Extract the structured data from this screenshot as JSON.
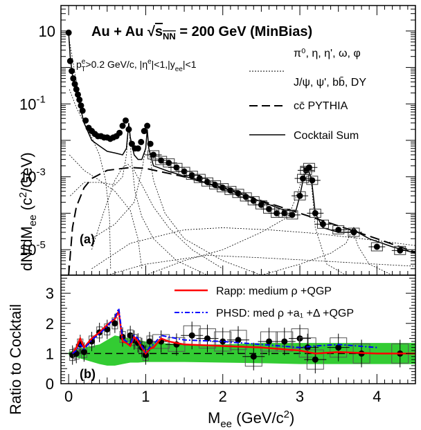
{
  "chart_data": [
    {
      "panel": "(a)",
      "type": "line",
      "title": "Au + Au √s_NN = 200 GeV (MinBias)",
      "title_parts": {
        "prefix": "Au + Au ",
        "sqrt": "√",
        "s": "s",
        "sub": "NN",
        "suffix": " = 200 GeV (MinBias)"
      },
      "cuts_label": {
        "p": "p",
        "sup1": "e",
        "sub1": "T",
        "a": ">0.2 GeV/c, |η",
        "sup2": "e",
        "b": "|<1,|y",
        "sub2": "ee",
        "c": "|<1"
      },
      "ylabel": {
        "main": "dN/dM",
        "sub": "ee",
        "unit": " (c",
        "sup": "2",
        "unit2": "/GeV)"
      },
      "yscale": "log",
      "ylim": [
        2e-06,
        50
      ],
      "xlim": [
        -0.1,
        4.5
      ],
      "y_ticks": [
        {
          "value": 10,
          "label": "10"
        },
        {
          "value": 0.1,
          "label": "10",
          "exp": "-1"
        },
        {
          "value": 0.001,
          "label": "10",
          "exp": "-3"
        },
        {
          "value": 1e-05,
          "label": "10",
          "exp": "-5"
        }
      ],
      "legend_position": "top-right",
      "legend": [
        {
          "label": "π⁰, η, η', ω, φ",
          "style": "dotted"
        },
        {
          "label": "J/ψ, ψ', bb̄, DY",
          "style": "none"
        },
        {
          "label": "cc̄ PYTHIA",
          "style": "dashed"
        },
        {
          "label": "Cocktail Sum",
          "style": "solid"
        }
      ],
      "data_points": {
        "x": [
          0.0,
          0.02,
          0.04,
          0.06,
          0.08,
          0.1,
          0.12,
          0.14,
          0.16,
          0.18,
          0.22,
          0.26,
          0.3,
          0.34,
          0.38,
          0.42,
          0.46,
          0.5,
          0.54,
          0.58,
          0.62,
          0.66,
          0.7,
          0.74,
          0.78,
          0.82,
          0.86,
          0.9,
          0.94,
          0.98,
          1.02,
          1.06,
          1.1,
          1.2,
          1.3,
          1.4,
          1.5,
          1.6,
          1.7,
          1.8,
          1.9,
          2.0,
          2.1,
          2.2,
          2.3,
          2.4,
          2.5,
          2.6,
          2.7,
          2.8,
          2.9,
          3.0,
          3.04,
          3.08,
          3.12,
          3.16,
          3.2,
          3.3,
          3.5,
          3.7,
          4.0,
          4.3
        ],
        "y": [
          9,
          1.5,
          0.8,
          0.5,
          0.35,
          0.25,
          0.18,
          0.13,
          0.09,
          0.065,
          0.035,
          0.022,
          0.018,
          0.015,
          0.013,
          0.013,
          0.012,
          0.012,
          0.011,
          0.012,
          0.013,
          0.016,
          0.025,
          0.035,
          0.02,
          0.008,
          0.006,
          0.006,
          0.009,
          0.018,
          0.025,
          0.008,
          0.004,
          0.0028,
          0.0024,
          0.0018,
          0.0014,
          0.0011,
          0.0009,
          0.00072,
          0.0006,
          0.0005,
          0.00042,
          0.00035,
          0.00028,
          0.00022,
          0.00017,
          0.00013,
          0.0001,
          0.0001,
          9e-05,
          0.0003,
          0.0009,
          0.0015,
          0.0018,
          0.0008,
          0.0001,
          5e-05,
          3.5e-05,
          3e-05,
          1.2e-05,
          9.5e-06
        ]
      },
      "cocktail_sum": {
        "x": [
          0.0,
          0.02,
          0.05,
          0.1,
          0.14,
          0.2,
          0.3,
          0.4,
          0.5,
          0.6,
          0.7,
          0.75,
          0.78,
          0.8,
          0.85,
          0.9,
          0.95,
          1.0,
          1.02,
          1.04,
          1.1,
          1.3,
          1.6,
          2.0,
          2.4,
          2.8,
          2.95,
          3.0,
          3.05,
          3.1,
          3.15,
          3.2,
          3.3,
          3.5,
          3.65,
          3.7,
          3.75,
          3.9,
          4.2,
          4.5
        ],
        "y": [
          9,
          2,
          0.6,
          0.2,
          0.1,
          0.03,
          0.01,
          0.007,
          0.005,
          0.0045,
          0.004,
          0.006,
          0.03,
          0.012,
          0.004,
          0.003,
          0.003,
          0.006,
          0.02,
          0.006,
          0.002,
          0.0014,
          0.0009,
          0.0005,
          0.00025,
          0.00012,
          0.00012,
          0.0003,
          0.001,
          0.0017,
          0.0009,
          0.0001,
          4e-05,
          3e-05,
          3e-05,
          4e-05,
          3e-05,
          2e-05,
          1.2e-05,
          8e-06
        ]
      },
      "charm_pythia": {
        "x": [
          0.0,
          0.05,
          0.1,
          0.2,
          0.3,
          0.5,
          0.8,
          1.0,
          1.5,
          2.0,
          2.5,
          3.0,
          3.5,
          4.0,
          4.5
        ],
        "y": [
          2e-06,
          4e-05,
          0.00015,
          0.0005,
          0.0009,
          0.0015,
          0.0018,
          0.0017,
          0.001,
          0.0005,
          0.00022,
          0.0001,
          4.5e-05,
          2e-05,
          8.5e-06
        ]
      }
    },
    {
      "panel": "(b)",
      "type": "line",
      "xlabel": {
        "main": "M",
        "sub": "ee",
        "unit": " (GeV/c",
        "sup": "2",
        "close": ")"
      },
      "ylabel": "Ratio to Cocktail",
      "ylim": [
        0,
        3.6
      ],
      "xlim": [
        -0.1,
        4.5
      ],
      "y_ticks": [
        0,
        1,
        2,
        3
      ],
      "x_ticks": [
        0,
        1,
        2,
        3,
        4
      ],
      "legend_position": "top-right",
      "series": [
        {
          "name": "Rapp: medium ρ +QGP",
          "color": "#ff0000",
          "style": "solid",
          "x": [
            0.05,
            0.1,
            0.15,
            0.2,
            0.25,
            0.3,
            0.4,
            0.5,
            0.6,
            0.65,
            0.7,
            0.75,
            0.8,
            0.85,
            0.9,
            0.95,
            1.0,
            1.05,
            1.1,
            1.2,
            1.3,
            1.5,
            2.0,
            2.5,
            3.0,
            3.2,
            3.5,
            4.0,
            4.5
          ],
          "values": [
            1.0,
            1.2,
            1.5,
            1.2,
            1.35,
            1.5,
            1.7,
            1.95,
            2.15,
            2.4,
            1.4,
            1.35,
            1.25,
            1.55,
            1.4,
            1.2,
            1.0,
            1.15,
            1.2,
            1.5,
            1.4,
            1.3,
            1.25,
            1.2,
            1.1,
            1.0,
            1.05,
            1.0,
            1.0
          ]
        },
        {
          "name": "PHSD: med ρ +a₁ +Δ +QGP",
          "color": "#0000ff",
          "style": "dash-dot",
          "x": [
            0.05,
            0.1,
            0.15,
            0.2,
            0.3,
            0.4,
            0.5,
            0.6,
            0.65,
            0.7,
            0.75,
            0.8,
            0.85,
            0.9,
            0.95,
            1.0,
            1.05,
            1.1,
            1.2,
            1.3,
            1.5,
            2.0,
            2.5,
            3.0,
            3.2,
            3.5,
            4.0
          ],
          "values": [
            1.0,
            1.1,
            1.3,
            1.15,
            1.45,
            1.65,
            1.9,
            2.2,
            2.5,
            1.5,
            1.4,
            1.3,
            1.6,
            1.5,
            1.25,
            1.05,
            1.2,
            1.3,
            1.6,
            1.55,
            1.45,
            1.4,
            1.3,
            1.2,
            1.25,
            1.3,
            1.2
          ]
        }
      ],
      "systematic_band": {
        "color": "#33cc33",
        "x": [
          0.0,
          0.2,
          0.4,
          0.5,
          0.6,
          0.7,
          0.8,
          0.9,
          1.0,
          1.2,
          1.5,
          2.0,
          2.5,
          3.0,
          3.5,
          4.0,
          4.5
        ],
        "upper": [
          1.05,
          1.2,
          1.3,
          1.45,
          1.6,
          1.55,
          1.5,
          1.45,
          1.4,
          1.35,
          1.3,
          1.3,
          1.35,
          1.35,
          1.35,
          1.35,
          1.35
        ],
        "lower": [
          0.95,
          0.8,
          0.65,
          0.6,
          0.6,
          0.65,
          0.7,
          0.7,
          0.72,
          0.72,
          0.72,
          0.7,
          0.68,
          0.65,
          0.65,
          0.65,
          0.65
        ]
      },
      "data_points": {
        "x": [
          0.05,
          0.1,
          0.15,
          0.2,
          0.3,
          0.4,
          0.5,
          0.6,
          0.7,
          0.8,
          0.85,
          0.9,
          0.95,
          1.0,
          1.05,
          1.2,
          1.4,
          1.6,
          1.8,
          2.0,
          2.2,
          2.4,
          2.6,
          2.8,
          3.0,
          3.1,
          3.2,
          3.5,
          3.8,
          4.3
        ],
        "values": [
          0.95,
          1.0,
          1.3,
          1.05,
          1.4,
          1.7,
          1.8,
          2.0,
          1.55,
          1.6,
          1.45,
          1.35,
          1.2,
          0.95,
          1.4,
          1.4,
          1.3,
          1.6,
          1.5,
          1.4,
          1.45,
          0.9,
          1.4,
          1.4,
          1.5,
          1.2,
          0.8,
          1.2,
          1.0,
          1.0
        ]
      }
    }
  ]
}
